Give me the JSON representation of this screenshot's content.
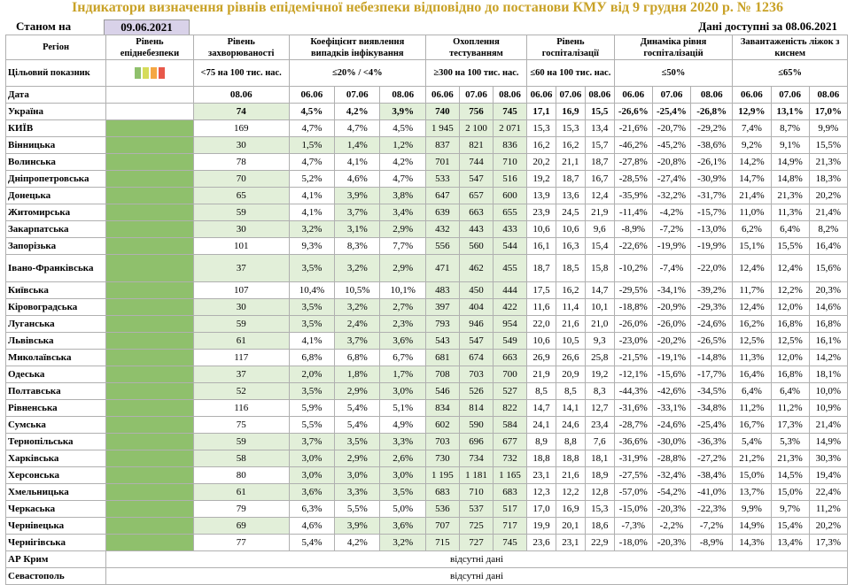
{
  "title": "Індикатори визначення рівнів епідемічної небезпеки відповідно до постанови КМУ від 9 грудня 2020 р. № 1236",
  "as_of_label": "Станом на",
  "as_of_date": "09.06.2021",
  "data_available": "Дані доступні за 08.06.2021",
  "headers": {
    "region": "Регіон",
    "level": "Рівень епіднебезпеки",
    "morbidity": "Рівень захворюваності",
    "detection": "Коефіцієнт виявлення випадків інфікування",
    "testing": "Охоплення тестуванням",
    "hosp": "Рівень госпіталізації",
    "hosp_dyn": "Динаміка рівня госпіталізацій",
    "oxygen": "Завантаженість ліжок з киснем"
  },
  "target": {
    "label": "Цільовий показник",
    "morbidity": "<75 на 100 тис. нас.",
    "detection": "≤20% / <4%",
    "testing": "≥300 на 100 тис. нас.",
    "hosp": "≤60 на 100 тис. нас.",
    "hosp_dyn": "≤50%",
    "oxygen": "≤65%",
    "level_colors": [
      "#8fc06c",
      "#d6dc5a",
      "#f5a742",
      "#e8584a"
    ]
  },
  "date_row": {
    "label": "Дата",
    "morbidity": [
      "08.06"
    ],
    "detection": [
      "06.06",
      "07.06",
      "08.06"
    ],
    "testing": [
      "06.06",
      "07.06",
      "08.06"
    ],
    "hosp": [
      "06.06",
      "07.06",
      "08.06"
    ],
    "hosp_dyn": [
      "06.06",
      "07.06",
      "08.06"
    ],
    "oxygen": [
      "06.06",
      "07.06",
      "08.06"
    ]
  },
  "regions": [
    {
      "name": "Україна",
      "morb": "74",
      "det": [
        "4,5%",
        "4,2%",
        "3,9%"
      ],
      "test": [
        "740",
        "756",
        "745"
      ],
      "hosp": [
        "17,1",
        "16,9",
        "15,5"
      ],
      "dyn": [
        "-26,6%",
        "-25,4%",
        "-26,8%"
      ],
      "oxy": [
        "12,9%",
        "13,1%",
        "17,0%"
      ]
    },
    {
      "name": "КИЇВ",
      "morb": "169",
      "det": [
        "4,7%",
        "4,7%",
        "4,5%"
      ],
      "test": [
        "1 945",
        "2 100",
        "2 071"
      ],
      "hosp": [
        "15,3",
        "15,3",
        "13,4"
      ],
      "dyn": [
        "-21,6%",
        "-20,7%",
        "-29,2%"
      ],
      "oxy": [
        "7,4%",
        "8,7%",
        "9,9%"
      ]
    },
    {
      "name": "Вінницька",
      "morb": "30",
      "det": [
        "1,5%",
        "1,4%",
        "1,2%"
      ],
      "test": [
        "837",
        "821",
        "836"
      ],
      "hosp": [
        "16,2",
        "16,2",
        "15,7"
      ],
      "dyn": [
        "-46,2%",
        "-45,2%",
        "-38,6%"
      ],
      "oxy": [
        "9,2%",
        "9,1%",
        "15,5%"
      ]
    },
    {
      "name": "Волинська",
      "morb": "78",
      "det": [
        "4,7%",
        "4,1%",
        "4,2%"
      ],
      "test": [
        "701",
        "744",
        "710"
      ],
      "hosp": [
        "20,2",
        "21,1",
        "18,7"
      ],
      "dyn": [
        "-27,8%",
        "-20,8%",
        "-26,1%"
      ],
      "oxy": [
        "14,2%",
        "14,9%",
        "21,3%"
      ]
    },
    {
      "name": "Дніпропетровська",
      "morb": "70",
      "det": [
        "5,2%",
        "4,6%",
        "4,7%"
      ],
      "test": [
        "533",
        "547",
        "516"
      ],
      "hosp": [
        "19,2",
        "18,7",
        "16,7"
      ],
      "dyn": [
        "-28,5%",
        "-27,4%",
        "-30,9%"
      ],
      "oxy": [
        "14,7%",
        "14,8%",
        "18,3%"
      ]
    },
    {
      "name": "Донецька",
      "morb": "65",
      "det": [
        "4,1%",
        "3,9%",
        "3,8%"
      ],
      "test": [
        "647",
        "657",
        "600"
      ],
      "hosp": [
        "13,9",
        "13,6",
        "12,4"
      ],
      "dyn": [
        "-35,9%",
        "-32,2%",
        "-31,7%"
      ],
      "oxy": [
        "21,4%",
        "21,3%",
        "20,2%"
      ]
    },
    {
      "name": "Житомирська",
      "morb": "59",
      "det": [
        "4,1%",
        "3,7%",
        "3,4%"
      ],
      "test": [
        "639",
        "663",
        "655"
      ],
      "hosp": [
        "23,9",
        "24,5",
        "21,9"
      ],
      "dyn": [
        "-11,4%",
        "-4,2%",
        "-15,7%"
      ],
      "oxy": [
        "11,0%",
        "11,3%",
        "21,4%"
      ]
    },
    {
      "name": "Закарпатська",
      "morb": "30",
      "det": [
        "3,2%",
        "3,1%",
        "2,9%"
      ],
      "test": [
        "432",
        "443",
        "433"
      ],
      "hosp": [
        "10,6",
        "10,6",
        "9,6"
      ],
      "dyn": [
        "-8,9%",
        "-7,2%",
        "-13,0%"
      ],
      "oxy": [
        "6,2%",
        "6,4%",
        "8,2%"
      ]
    },
    {
      "name": "Запорізька",
      "morb": "101",
      "det": [
        "9,3%",
        "8,3%",
        "7,7%"
      ],
      "test": [
        "556",
        "560",
        "544"
      ],
      "hosp": [
        "16,1",
        "16,3",
        "15,4"
      ],
      "dyn": [
        "-22,6%",
        "-19,9%",
        "-19,9%"
      ],
      "oxy": [
        "15,1%",
        "15,5%",
        "16,4%"
      ]
    },
    {
      "name": "Івано-Франківська",
      "morb": "37",
      "det": [
        "3,5%",
        "3,2%",
        "2,9%"
      ],
      "test": [
        "471",
        "462",
        "455"
      ],
      "hosp": [
        "18,7",
        "18,5",
        "15,8"
      ],
      "dyn": [
        "-10,2%",
        "-7,4%",
        "-22,0%"
      ],
      "oxy": [
        "12,4%",
        "12,4%",
        "15,6%"
      ]
    },
    {
      "name": "Київська",
      "morb": "107",
      "det": [
        "10,4%",
        "10,5%",
        "10,1%"
      ],
      "test": [
        "483",
        "450",
        "444"
      ],
      "hosp": [
        "17,5",
        "16,2",
        "14,7"
      ],
      "dyn": [
        "-29,5%",
        "-34,1%",
        "-39,2%"
      ],
      "oxy": [
        "11,7%",
        "12,2%",
        "20,3%"
      ]
    },
    {
      "name": "Кіровоградська",
      "morb": "30",
      "det": [
        "3,5%",
        "3,2%",
        "2,7%"
      ],
      "test": [
        "397",
        "404",
        "422"
      ],
      "hosp": [
        "11,6",
        "11,4",
        "10,1"
      ],
      "dyn": [
        "-18,8%",
        "-20,9%",
        "-29,3%"
      ],
      "oxy": [
        "12,4%",
        "12,0%",
        "14,6%"
      ]
    },
    {
      "name": "Луганська",
      "morb": "59",
      "det": [
        "3,5%",
        "2,4%",
        "2,3%"
      ],
      "test": [
        "793",
        "946",
        "954"
      ],
      "hosp": [
        "22,0",
        "21,6",
        "21,0"
      ],
      "dyn": [
        "-26,0%",
        "-26,0%",
        "-24,6%"
      ],
      "oxy": [
        "16,2%",
        "16,8%",
        "16,8%"
      ]
    },
    {
      "name": "Львівська",
      "morb": "61",
      "det": [
        "4,1%",
        "3,7%",
        "3,6%"
      ],
      "test": [
        "543",
        "547",
        "549"
      ],
      "hosp": [
        "10,6",
        "10,5",
        "9,3"
      ],
      "dyn": [
        "-23,0%",
        "-20,2%",
        "-26,5%"
      ],
      "oxy": [
        "12,5%",
        "12,5%",
        "16,1%"
      ]
    },
    {
      "name": "Миколаївська",
      "morb": "117",
      "det": [
        "6,8%",
        "6,8%",
        "6,7%"
      ],
      "test": [
        "681",
        "674",
        "663"
      ],
      "hosp": [
        "26,9",
        "26,6",
        "25,8"
      ],
      "dyn": [
        "-21,5%",
        "-19,1%",
        "-14,8%"
      ],
      "oxy": [
        "11,3%",
        "12,0%",
        "14,2%"
      ]
    },
    {
      "name": "Одеська",
      "morb": "37",
      "det": [
        "2,0%",
        "1,8%",
        "1,7%"
      ],
      "test": [
        "708",
        "703",
        "700"
      ],
      "hosp": [
        "21,9",
        "20,9",
        "19,2"
      ],
      "dyn": [
        "-12,1%",
        "-15,6%",
        "-17,7%"
      ],
      "oxy": [
        "16,4%",
        "16,8%",
        "18,1%"
      ]
    },
    {
      "name": "Полтавська",
      "morb": "52",
      "det": [
        "3,5%",
        "2,9%",
        "3,0%"
      ],
      "test": [
        "546",
        "526",
        "527"
      ],
      "hosp": [
        "8,5",
        "8,5",
        "8,3"
      ],
      "dyn": [
        "-44,3%",
        "-42,6%",
        "-34,5%"
      ],
      "oxy": [
        "6,4%",
        "6,4%",
        "10,0%"
      ]
    },
    {
      "name": "Рівненська",
      "morb": "116",
      "det": [
        "5,9%",
        "5,4%",
        "5,1%"
      ],
      "test": [
        "834",
        "814",
        "822"
      ],
      "hosp": [
        "14,7",
        "14,1",
        "12,7"
      ],
      "dyn": [
        "-31,6%",
        "-33,1%",
        "-34,8%"
      ],
      "oxy": [
        "11,2%",
        "11,2%",
        "10,9%"
      ]
    },
    {
      "name": "Сумська",
      "morb": "75",
      "det": [
        "5,5%",
        "5,4%",
        "4,9%"
      ],
      "test": [
        "602",
        "590",
        "584"
      ],
      "hosp": [
        "24,1",
        "24,6",
        "23,4"
      ],
      "dyn": [
        "-28,7%",
        "-24,6%",
        "-25,4%"
      ],
      "oxy": [
        "16,7%",
        "17,3%",
        "21,4%"
      ]
    },
    {
      "name": "Тернопільська",
      "morb": "59",
      "det": [
        "3,7%",
        "3,5%",
        "3,3%"
      ],
      "test": [
        "703",
        "696",
        "677"
      ],
      "hosp": [
        "8,9",
        "8,8",
        "7,6"
      ],
      "dyn": [
        "-36,6%",
        "-30,0%",
        "-36,3%"
      ],
      "oxy": [
        "5,4%",
        "5,3%",
        "14,9%"
      ]
    },
    {
      "name": "Харківська",
      "morb": "58",
      "det": [
        "3,0%",
        "2,9%",
        "2,6%"
      ],
      "test": [
        "730",
        "734",
        "732"
      ],
      "hosp": [
        "18,8",
        "18,8",
        "18,1"
      ],
      "dyn": [
        "-31,9%",
        "-28,8%",
        "-27,2%"
      ],
      "oxy": [
        "21,2%",
        "21,3%",
        "30,3%"
      ]
    },
    {
      "name": "Херсонська",
      "morb": "80",
      "det": [
        "3,0%",
        "3,0%",
        "3,0%"
      ],
      "test": [
        "1 195",
        "1 181",
        "1 165"
      ],
      "hosp": [
        "23,1",
        "21,6",
        "18,9"
      ],
      "dyn": [
        "-27,5%",
        "-32,4%",
        "-38,4%"
      ],
      "oxy": [
        "15,0%",
        "14,5%",
        "19,4%"
      ]
    },
    {
      "name": "Хмельницька",
      "morb": "61",
      "det": [
        "3,6%",
        "3,3%",
        "3,5%"
      ],
      "test": [
        "683",
        "710",
        "683"
      ],
      "hosp": [
        "12,3",
        "12,2",
        "12,8"
      ],
      "dyn": [
        "-57,0%",
        "-54,2%",
        "-41,0%"
      ],
      "oxy": [
        "13,7%",
        "15,0%",
        "22,4%"
      ]
    },
    {
      "name": "Черкаська",
      "morb": "79",
      "det": [
        "6,3%",
        "5,5%",
        "5,0%"
      ],
      "test": [
        "536",
        "537",
        "517"
      ],
      "hosp": [
        "17,0",
        "16,9",
        "15,3"
      ],
      "dyn": [
        "-15,0%",
        "-20,3%",
        "-22,3%"
      ],
      "oxy": [
        "9,9%",
        "9,7%",
        "11,2%"
      ]
    },
    {
      "name": "Чернівецька",
      "morb": "69",
      "det": [
        "4,6%",
        "3,9%",
        "3,6%"
      ],
      "test": [
        "707",
        "725",
        "717"
      ],
      "hosp": [
        "19,9",
        "20,1",
        "18,6"
      ],
      "dyn": [
        "-7,3%",
        "-2,2%",
        "-7,2%"
      ],
      "oxy": [
        "14,9%",
        "15,4%",
        "20,2%"
      ]
    },
    {
      "name": "Чернігівська",
      "morb": "77",
      "det": [
        "5,4%",
        "4,2%",
        "3,2%"
      ],
      "test": [
        "715",
        "727",
        "745"
      ],
      "hosp": [
        "23,6",
        "23,1",
        "22,9"
      ],
      "dyn": [
        "-18,0%",
        "-20,3%",
        "-8,9%"
      ],
      "oxy": [
        "14,3%",
        "13,4%",
        "17,3%"
      ]
    }
  ],
  "no_data_regions": [
    {
      "name": "АР Крим",
      "text": "відсутні дані"
    },
    {
      "name": "Севастополь",
      "text": "відсутні дані"
    }
  ],
  "colors": {
    "title": "#c9a227",
    "good": "#e2efd9",
    "risk_green": "#8fc06c",
    "date_bg": "#d9d2e9"
  }
}
